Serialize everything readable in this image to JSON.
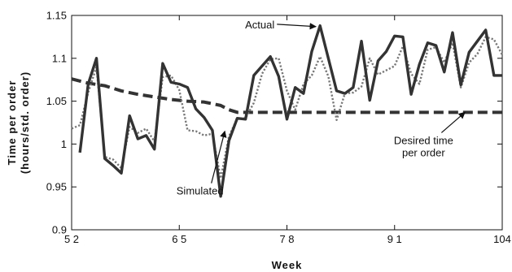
{
  "chart_data": {
    "type": "line",
    "xlabel": "Week",
    "ylabel_line1": "Time per order",
    "ylabel_line2": "(hours/std. order)",
    "xlim": [
      52,
      104
    ],
    "ylim": [
      0.9,
      1.15
    ],
    "x_ticks": [
      52,
      65,
      78,
      91,
      104
    ],
    "x_tick_labels": [
      "5 2",
      "6 5",
      "7 8",
      "9 1",
      "104"
    ],
    "y_ticks": [
      0.9,
      0.95,
      1.0,
      1.05,
      1.1,
      1.15
    ],
    "y_tick_labels": [
      "0.9",
      "0.95",
      "1",
      "1.05",
      "1.1",
      "1.15"
    ],
    "series": [
      {
        "name": "Actual",
        "style": "solid-thick",
        "color": "#333333",
        "x": [
          53,
          54,
          55,
          56,
          57,
          58,
          59,
          60,
          61,
          62,
          63,
          64,
          65,
          66,
          67,
          68,
          69,
          70,
          71,
          72,
          73,
          74,
          75,
          76,
          77,
          78,
          79,
          80,
          81,
          82,
          83,
          84,
          85,
          86,
          87,
          88,
          89,
          90,
          91,
          92,
          93,
          94,
          95,
          96,
          97,
          98,
          99,
          100,
          101,
          102,
          103,
          104
        ],
        "y": [
          0.99,
          1.07,
          1.1,
          0.983,
          0.975,
          0.966,
          1.033,
          1.006,
          1.01,
          0.994,
          1.094,
          1.072,
          1.07,
          1.066,
          1.041,
          1.031,
          1.016,
          0.939,
          1.004,
          1.03,
          1.029,
          1.08,
          1.091,
          1.102,
          1.079,
          1.029,
          1.066,
          1.059,
          1.108,
          1.138,
          1.1,
          1.062,
          1.059,
          1.066,
          1.12,
          1.051,
          1.097,
          1.108,
          1.126,
          1.125,
          1.058,
          1.093,
          1.118,
          1.115,
          1.084,
          1.13,
          1.069,
          1.107,
          1.12,
          1.133,
          1.08,
          1.08
        ]
      },
      {
        "name": "Simulated",
        "style": "dotted",
        "color": "#777777",
        "x": [
          52,
          53,
          54,
          55,
          56,
          57,
          58,
          59,
          60,
          61,
          62,
          63,
          64,
          65,
          66,
          67,
          68,
          69,
          70,
          71,
          72,
          73,
          74,
          75,
          76,
          77,
          78,
          79,
          80,
          81,
          82,
          83,
          84,
          85,
          86,
          87,
          88,
          89,
          90,
          91,
          92,
          93,
          94,
          95,
          96,
          97,
          98,
          99,
          100,
          101,
          102,
          103,
          104
        ],
        "y": [
          1.018,
          1.022,
          1.06,
          1.09,
          0.985,
          0.982,
          0.972,
          1.02,
          1.013,
          1.018,
          1.003,
          1.078,
          1.08,
          1.063,
          1.016,
          1.015,
          1.01,
          1.012,
          0.96,
          1.009,
          1.03,
          1.03,
          1.048,
          1.082,
          1.099,
          1.1,
          1.062,
          1.04,
          1.07,
          1.08,
          1.102,
          1.079,
          1.028,
          1.059,
          1.06,
          1.067,
          1.1,
          1.081,
          1.086,
          1.091,
          1.114,
          1.082,
          1.07,
          1.11,
          1.113,
          1.095,
          1.118,
          1.066,
          1.095,
          1.105,
          1.125,
          1.122,
          1.104
        ]
      },
      {
        "name": "Desired time per order",
        "style": "dashed-thick",
        "color": "#333333",
        "x": [
          52,
          54,
          56,
          58,
          60,
          62,
          64,
          66,
          68,
          70,
          71,
          72,
          74,
          76,
          78,
          80,
          84,
          88,
          92,
          96,
          100,
          104
        ],
        "y": [
          1.076,
          1.071,
          1.068,
          1.062,
          1.058,
          1.055,
          1.052,
          1.05,
          1.049,
          1.045,
          1.04,
          1.037,
          1.037,
          1.037,
          1.037,
          1.037,
          1.037,
          1.037,
          1.037,
          1.037,
          1.037,
          1.037
        ]
      }
    ],
    "annotations": [
      {
        "text_lines": [
          "Actual"
        ],
        "x": 76.5,
        "y": 1.135,
        "anchor": "end",
        "arrow_to": [
          81.5,
          1.137
        ]
      },
      {
        "text_lines": [
          "Simulated"
        ],
        "x": 67.5,
        "y": 0.941,
        "anchor": "middle",
        "arrow_to": [
          70.5,
          1.015
        ]
      },
      {
        "text_lines": [
          "Desired time",
          "per order"
        ],
        "x": 94.5,
        "y": 1.0,
        "anchor": "middle",
        "arrow_to": [
          99.5,
          1.037
        ]
      }
    ]
  }
}
